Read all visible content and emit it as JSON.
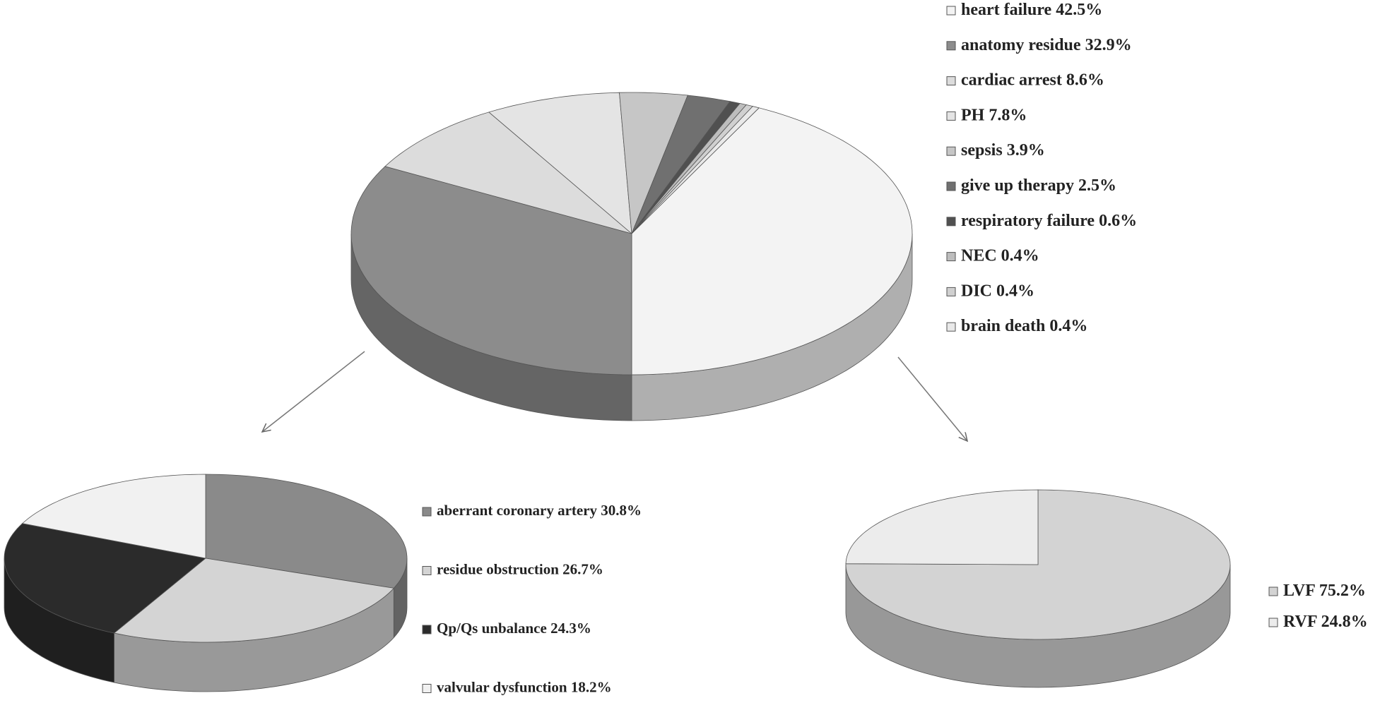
{
  "chart_data": [
    {
      "type": "pie",
      "categories": [
        "heart failure",
        "anatomy residue",
        "cardiac arrest",
        "PH",
        "sepsis",
        "give up therapy",
        "respiratory failure",
        "NEC",
        "DIC",
        "brain death"
      ],
      "values": [
        42.5,
        32.9,
        8.6,
        7.8,
        3.9,
        2.5,
        0.6,
        0.4,
        0.4,
        0.4
      ],
      "value_labels": [
        "42.5%",
        "32.9%",
        "8.6%",
        "7.8%",
        "3.9%",
        "2.5%",
        "0.6%",
        "0.4%",
        "0.4%",
        "0.4%"
      ],
      "colors": [
        "#f3f3f3",
        "#8c8c8c",
        "#dcdcdc",
        "#e4e4e4",
        "#c6c6c6",
        "#707070",
        "#505050",
        "#bdbdbd",
        "#d0d0d0",
        "#e9e9e9"
      ]
    },
    {
      "type": "pie",
      "categories": [
        "aberrant coronary artery",
        "residue obstruction",
        "Qp/Qs unbalance",
        "valvular dysfunction"
      ],
      "values": [
        30.8,
        26.7,
        24.3,
        18.2
      ],
      "value_labels": [
        "30.8%",
        "26.7%",
        "24.3%",
        "18.2%"
      ],
      "colors": [
        "#8a8a8a",
        "#d4d4d4",
        "#2b2b2b",
        "#f1f1f1"
      ]
    },
    {
      "type": "pie",
      "categories": [
        "LVF",
        "RVF"
      ],
      "values": [
        75.2,
        24.8
      ],
      "value_labels": [
        "75.2%",
        "24.8%"
      ],
      "colors": [
        "#d3d3d3",
        "#ececec"
      ]
    }
  ]
}
